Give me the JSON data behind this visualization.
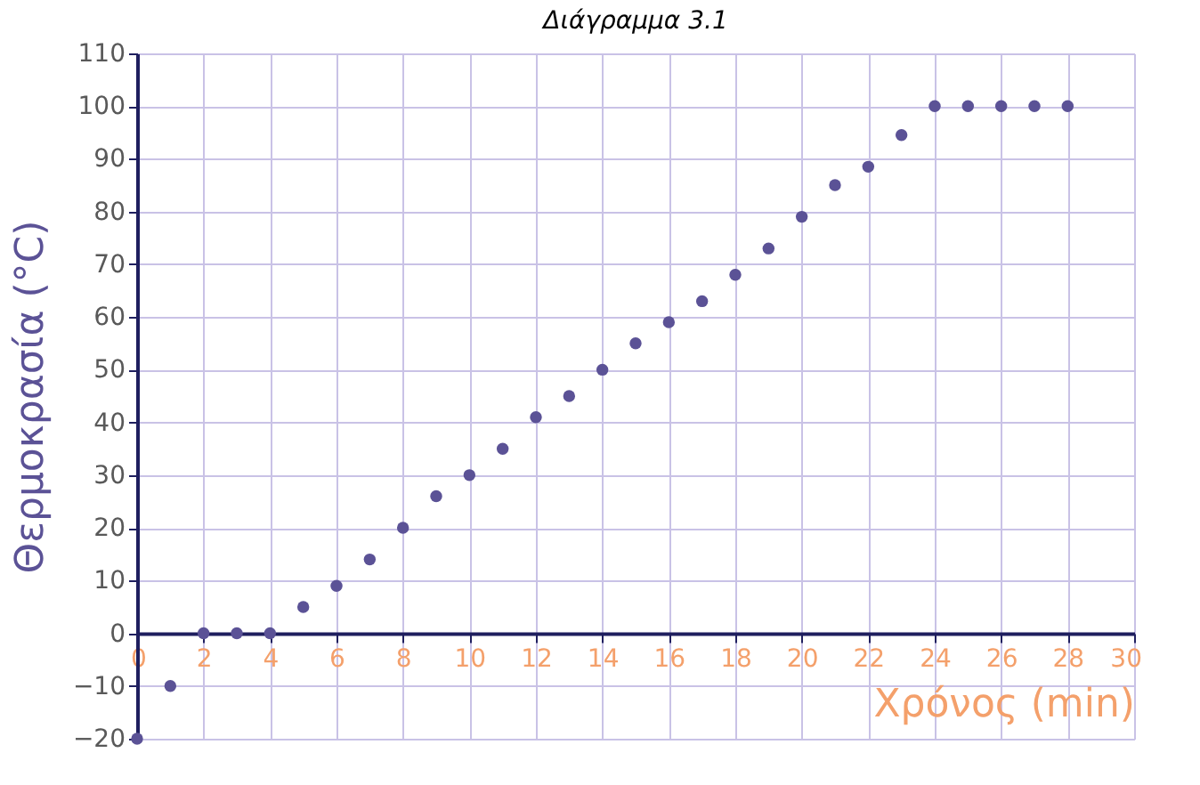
{
  "chart_data": {
    "type": "scatter",
    "title": "Διάγραμμα 3.1",
    "xlabel": "Χρόνος (min)",
    "ylabel": "Θερμοκρασία (°C)",
    "x": [
      0,
      1,
      2,
      3,
      4,
      5,
      6,
      7,
      8,
      9,
      10,
      11,
      12,
      13,
      14,
      15,
      16,
      17,
      18,
      19,
      20,
      21,
      22,
      23,
      24,
      25,
      26,
      27,
      28
    ],
    "series": [
      {
        "color": "#5b5296",
        "values": [
          -20,
          -10,
          0,
          0,
          0,
          5,
          9,
          14,
          20,
          26,
          30,
          35,
          41,
          45,
          50,
          55,
          59,
          63,
          68,
          73,
          79,
          85,
          88.5,
          94.5,
          100,
          100,
          100,
          100,
          100
        ]
      }
    ],
    "xlim": [
      0,
      30
    ],
    "ylim": [
      -20,
      110
    ],
    "xticks": [
      0,
      2,
      4,
      6,
      8,
      10,
      12,
      14,
      16,
      18,
      20,
      22,
      24,
      26,
      28,
      30
    ],
    "yticks": [
      -20,
      -10,
      0,
      10,
      20,
      30,
      40,
      50,
      60,
      70,
      80,
      90,
      100,
      110
    ],
    "grid": true,
    "marker": "circle"
  }
}
